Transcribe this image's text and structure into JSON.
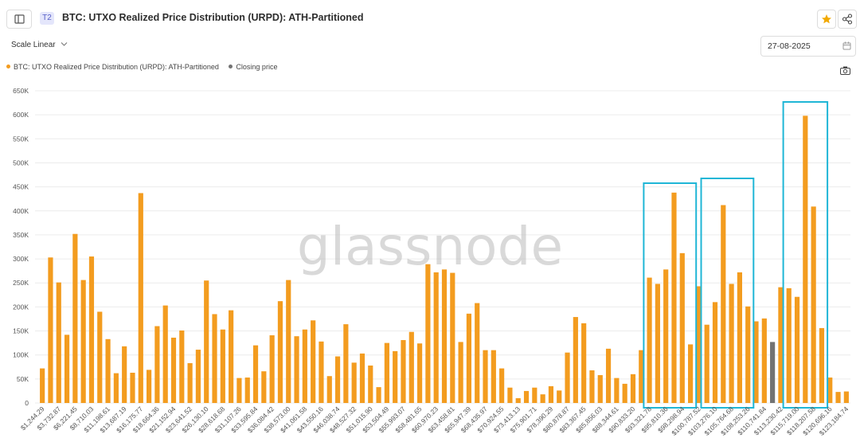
{
  "header": {
    "tier_badge": "T2",
    "title": "BTC: UTXO Realized Price Distribution (URPD): ATH-Partitioned"
  },
  "toolbar": {
    "scale_label": "Scale Linear",
    "date_value": "27-08-2025"
  },
  "icons": {
    "sidebar": "sidebar-toggle-icon",
    "star": "star-icon",
    "share": "share-icon",
    "chevron": "chevron-down-icon",
    "calendar": "calendar-icon",
    "camera": "camera-icon"
  },
  "legend": {
    "series_label": "BTC: UTXO Realized Price Distribution (URPD): ATH-Partitioned",
    "closing_label": "Closing price"
  },
  "colors": {
    "series": "#f39c1f",
    "closing": "#737373",
    "highlight": "#1fb6d6",
    "star": "#f2a900"
  },
  "watermark": "glassnode",
  "chart_data": {
    "type": "bar",
    "y_ticks": [
      "0",
      "50K",
      "100K",
      "150K",
      "200K",
      "250K",
      "300K",
      "350K",
      "400K",
      "450K",
      "500K",
      "550K",
      "600K",
      "650K"
    ],
    "ylim": [
      0,
      650000
    ],
    "x_tick_labels": [
      "$1,244.29",
      "$3,732.87",
      "$6,221.45",
      "$8,710.03",
      "$11,198.61",
      "$13,687.19",
      "$16,175.77",
      "$18,664.36",
      "$21,152.94",
      "$23,641.52",
      "$26,130.10",
      "$28,618.68",
      "$31,107.26",
      "$33,595.84",
      "$36,084.42",
      "$38,573.00",
      "$41,061.58",
      "$43,550.16",
      "$46,038.74",
      "$48,527.32",
      "$51,015.90",
      "$53,504.49",
      "$55,993.07",
      "$58,481.65",
      "$60,970.23",
      "$63,458.81",
      "$65,947.39",
      "$68,435.97",
      "$70,924.55",
      "$73,413.13",
      "$75,901.71",
      "$78,390.29",
      "$80,878.87",
      "$83,367.45",
      "$85,856.03",
      "$88,344.61",
      "$90,833.20",
      "$93,321.78",
      "$95,810.36",
      "$98,298.94",
      "$100,787.52",
      "$103,276.10",
      "$105,764.68",
      "$108,253.26",
      "$110,741.84",
      "$113,230.42",
      "$115,719.00",
      "$118,207.58",
      "$120,696.16",
      "$123,184.74"
    ],
    "series": [
      {
        "name": "BTC: UTXO Realized Price Distribution (URPD): ATH-Partitioned",
        "values": [
          72000,
          303000,
          251000,
          142000,
          352000,
          256000,
          305000,
          190000,
          133000,
          62000,
          118000,
          63000,
          437000,
          69000,
          160000,
          203000,
          136000,
          151000,
          83000,
          111000,
          255000,
          185000,
          153000,
          193000,
          52000,
          53000,
          120000,
          66000,
          141000,
          212000,
          256000,
          139000,
          153000,
          172000,
          128000,
          56000,
          97000,
          164000,
          84000,
          103000,
          78000,
          33000,
          125000,
          108000,
          131000,
          148000,
          124000,
          289000,
          272000,
          278000,
          271000,
          127000,
          186000,
          208000,
          110000,
          110000,
          72000,
          32000,
          10000,
          25000,
          32000,
          18000,
          35000,
          26000,
          105000,
          179000,
          166000,
          68000,
          58000,
          113000,
          52000,
          40000,
          60000,
          110000,
          261000,
          248000,
          278000,
          438000,
          312000,
          122000,
          243000,
          163000,
          210000,
          412000,
          248000,
          272000,
          201000,
          170000,
          176000,
          127000,
          241000,
          239000,
          221000,
          598000,
          409000,
          156000,
          53000,
          23000,
          24000
        ]
      }
    ],
    "closing_price_index": 89,
    "highlighted_ranges": [
      [
        74,
        79
      ],
      [
        81,
        86
      ],
      [
        91,
        95
      ]
    ],
    "grid": true,
    "legend_position": "top-left"
  }
}
